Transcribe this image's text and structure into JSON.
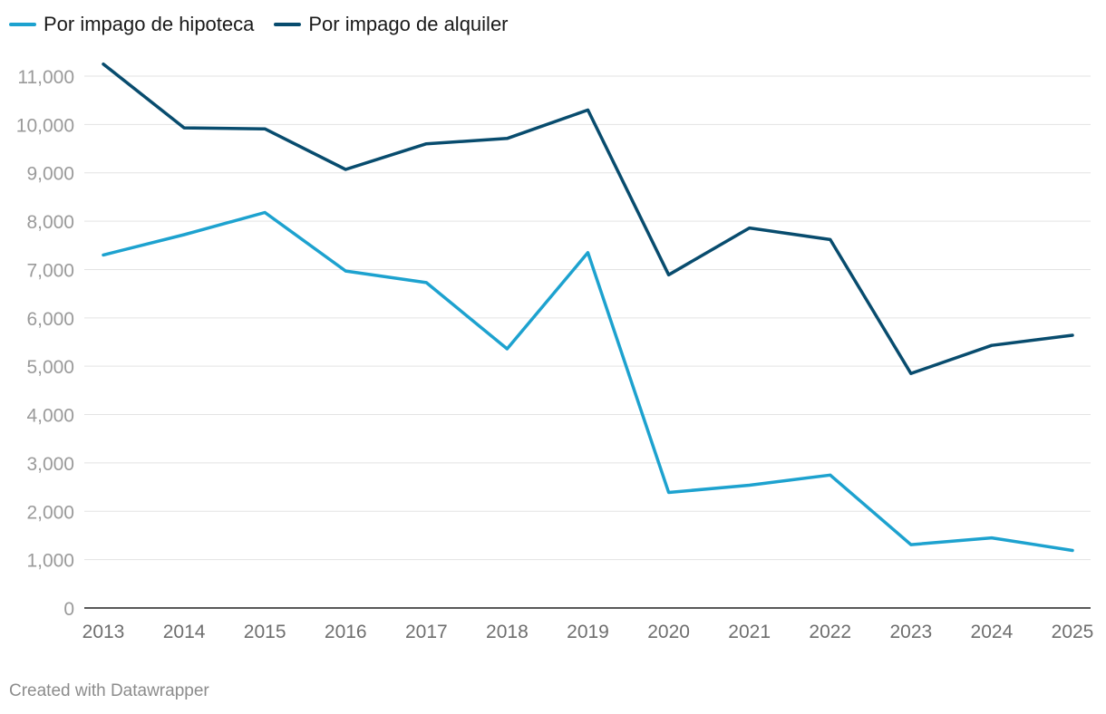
{
  "chart_data": {
    "type": "line",
    "x": [
      "2013",
      "2014",
      "2015",
      "2016",
      "2017",
      "2018",
      "2019",
      "2020",
      "2021",
      "2022",
      "2023",
      "2024",
      "2025"
    ],
    "series": [
      {
        "name": "Por impago de hipoteca",
        "color": "#1da2cf",
        "values": [
          7300,
          7720,
          8180,
          6970,
          6730,
          5360,
          7350,
          2390,
          2540,
          2750,
          1310,
          1450,
          1190
        ]
      },
      {
        "name": "Por impago de alquiler",
        "color": "#084c6e",
        "values": [
          11250,
          9930,
          9910,
          9070,
          9600,
          9710,
          10300,
          6890,
          7860,
          7620,
          4850,
          5430,
          5640
        ]
      }
    ],
    "y_ticks": [
      "0",
      "1,000",
      "2,000",
      "3,000",
      "4,000",
      "5,000",
      "6,000",
      "7,000",
      "8,000",
      "9,000",
      "10,000",
      "11,000"
    ],
    "ylim": [
      0,
      11000
    ],
    "grid": true,
    "legend": "top-left"
  },
  "footer": {
    "credit": "Created with Datawrapper"
  }
}
